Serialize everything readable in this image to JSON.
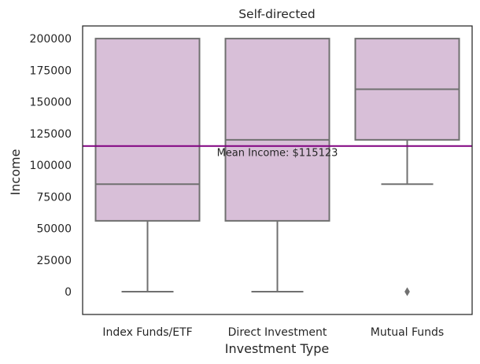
{
  "chart_data": {
    "type": "box",
    "title": "Self-directed",
    "xlabel": "Investment Type",
    "ylabel": "Income",
    "ylim": [
      -18000,
      210000
    ],
    "yticks": [
      0,
      25000,
      50000,
      75000,
      100000,
      125000,
      150000,
      175000,
      200000
    ],
    "ytick_labels": [
      "0",
      "25000",
      "50000",
      "75000",
      "100000",
      "125000",
      "150000",
      "175000",
      "200000"
    ],
    "categories": [
      "Index Funds/ETF",
      "Direct Investment",
      "Mutual Funds"
    ],
    "boxes": [
      {
        "category": "Index Funds/ETF",
        "whisker_low": 0,
        "q1": 56000,
        "median": 85000,
        "q3": 200000,
        "whisker_high": 200000,
        "outliers": []
      },
      {
        "category": "Direct Investment",
        "whisker_low": 0,
        "q1": 56000,
        "median": 120000,
        "q3": 200000,
        "whisker_high": 200000,
        "outliers": []
      },
      {
        "category": "Mutual Funds",
        "whisker_low": 85000,
        "q1": 120000,
        "median": 160000,
        "q3": 200000,
        "whisker_high": 200000,
        "outliers": [
          0
        ]
      }
    ],
    "mean_line": {
      "value": 115123,
      "label": "Mean Income: $115123"
    },
    "grid": false,
    "colors": {
      "box_fill": "#d8bfd8",
      "box_edge": "#707070",
      "mean_line": "#800080",
      "frame": "#262626"
    }
  }
}
